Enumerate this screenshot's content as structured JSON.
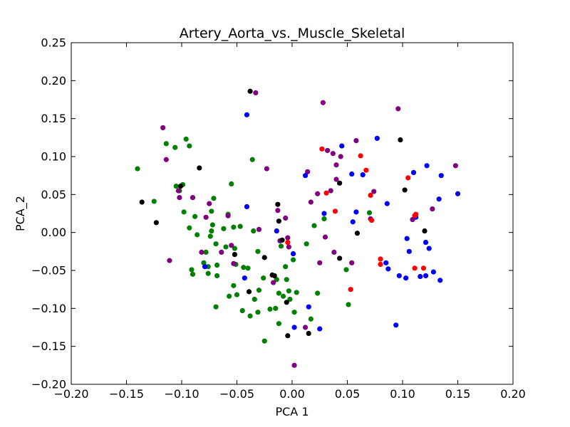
{
  "chart_data": {
    "type": "scatter",
    "title": "Artery_Aorta_vs._Muscle_Skeletal",
    "xlabel": "PCA 1",
    "ylabel": "PCA_2",
    "xlim": [
      -0.2,
      0.2
    ],
    "ylim": [
      -0.2,
      0.25
    ],
    "xticks": [
      -0.2,
      -0.15,
      -0.1,
      -0.05,
      0.0,
      0.05,
      0.1,
      0.15,
      0.2
    ],
    "xtick_labels": [
      "−0.20",
      "−0.15",
      "−0.10",
      "−0.05",
      "0.00",
      "0.05",
      "0.10",
      "0.15",
      "0.20"
    ],
    "yticks": [
      -0.2,
      -0.15,
      -0.1,
      -0.05,
      0.0,
      0.05,
      0.1,
      0.15,
      0.2,
      0.25
    ],
    "ytick_labels": [
      "−0.20",
      "−0.15",
      "−0.10",
      "−0.05",
      "0.00",
      "0.05",
      "0.10",
      "0.15",
      "0.20",
      "0.25"
    ],
    "grid": false,
    "legend": "none",
    "series": [
      {
        "name": "green",
        "color": "#008000",
        "points": [
          [
            -0.14,
            0.084
          ],
          [
            -0.125,
            0.041
          ],
          [
            -0.114,
            0.117
          ],
          [
            -0.096,
            0.123
          ],
          [
            -0.093,
            0.114
          ],
          [
            -0.106,
            0.112
          ],
          [
            -0.099,
            0.063
          ],
          [
            -0.105,
            0.061
          ],
          [
            -0.102,
            0.055
          ],
          [
            -0.098,
            0.027
          ],
          [
            -0.093,
            0.006
          ],
          [
            -0.088,
            0.021
          ],
          [
            -0.086,
            -0.003
          ],
          [
            -0.091,
            -0.049
          ],
          [
            -0.09,
            -0.055
          ],
          [
            -0.078,
            -0.026
          ],
          [
            -0.076,
            -0.045
          ],
          [
            -0.076,
            -0.054
          ],
          [
            -0.08,
            -0.04
          ],
          [
            -0.074,
            -0.005
          ],
          [
            -0.073,
            0.002
          ],
          [
            -0.072,
            0.01
          ],
          [
            -0.073,
            0.028
          ],
          [
            -0.071,
            0.045
          ],
          [
            -0.069,
            -0.015
          ],
          [
            -0.068,
            -0.043
          ],
          [
            -0.068,
            -0.057
          ],
          [
            -0.069,
            -0.098
          ],
          [
            -0.062,
            0.005
          ],
          [
            -0.06,
            -0.019
          ],
          [
            -0.058,
            0.024
          ],
          [
            -0.057,
            -0.084
          ],
          [
            -0.055,
            0.064
          ],
          [
            -0.053,
            0.007
          ],
          [
            -0.052,
            -0.021
          ],
          [
            -0.051,
            -0.042
          ],
          [
            -0.05,
            -0.082
          ],
          [
            -0.053,
            -0.07
          ],
          [
            -0.047,
            0.008
          ],
          [
            -0.045,
            -0.103
          ],
          [
            -0.044,
            -0.046
          ],
          [
            -0.04,
            -0.047
          ],
          [
            -0.038,
            -0.11
          ],
          [
            -0.036,
            0.096
          ],
          [
            -0.035,
            0.002
          ],
          [
            -0.034,
            -0.088
          ],
          [
            -0.031,
            -0.025
          ],
          [
            -0.031,
            -0.105
          ],
          [
            -0.03,
            -0.076
          ],
          [
            -0.026,
            -0.06
          ],
          [
            -0.025,
            -0.143
          ],
          [
            -0.02,
            -0.101
          ],
          [
            -0.015,
            -0.1
          ],
          [
            -0.014,
            -0.062
          ],
          [
            -0.012,
            -0.08
          ],
          [
            -0.012,
            -0.12
          ],
          [
            -0.01,
            -0.018
          ],
          [
            -0.008,
            -0.084
          ],
          [
            -0.006,
            -0.045
          ],
          [
            -0.005,
            -0.062
          ],
          [
            -0.002,
            -0.088
          ],
          [
            -0.003,
            -0.077
          ],
          [
            0.001,
            -0.036
          ],
          [
            0.002,
            -0.105
          ],
          [
            0.004,
            -0.079
          ],
          [
            0.013,
            -0.015
          ],
          [
            0.017,
            -0.114
          ],
          [
            0.02,
            0.009
          ],
          [
            0.023,
            -0.08
          ],
          [
            0.029,
            0.018
          ],
          [
            0.049,
            -0.049
          ],
          [
            0.051,
            -0.095
          ],
          [
            0.07,
            0.026
          ]
        ]
      },
      {
        "name": "purple",
        "color": "#800080",
        "points": [
          [
            -0.117,
            0.138
          ],
          [
            -0.114,
            0.096
          ],
          [
            -0.111,
            -0.037
          ],
          [
            -0.103,
            0.055
          ],
          [
            -0.102,
            0.046
          ],
          [
            -0.09,
            0.046
          ],
          [
            -0.082,
            -0.026
          ],
          [
            -0.078,
            0.02
          ],
          [
            -0.075,
            0.038
          ],
          [
            -0.064,
            -0.026
          ],
          [
            -0.058,
            0.022
          ],
          [
            -0.055,
            -0.017
          ],
          [
            -0.053,
            -0.041
          ],
          [
            -0.033,
            0.184
          ],
          [
            -0.03,
            0.004
          ],
          [
            -0.023,
            0.084
          ],
          [
            -0.017,
            -0.066
          ],
          [
            -0.013,
            0.029
          ],
          [
            -0.011,
            -0.011
          ],
          [
            -0.006,
            0.019
          ],
          [
            -0.004,
            -0.007
          ],
          [
            -0.003,
            -0.019
          ],
          [
            0.002,
            -0.175
          ],
          [
            0.012,
            -0.125
          ],
          [
            0.014,
            0.08
          ],
          [
            0.017,
            0.04
          ],
          [
            0.023,
            0.051
          ],
          [
            0.025,
            -0.04
          ],
          [
            0.028,
            0.171
          ],
          [
            0.03,
            -0.006
          ],
          [
            0.032,
            0.108
          ],
          [
            0.035,
            0.055
          ],
          [
            0.037,
            0.104
          ],
          [
            0.038,
            -0.026
          ],
          [
            0.04,
            0.089
          ],
          [
            0.04,
            0.07
          ],
          [
            0.044,
            0.1
          ],
          [
            0.054,
            -0.04
          ],
          [
            0.058,
            0.121
          ],
          [
            0.071,
            0.018
          ],
          [
            0.074,
            0.054
          ],
          [
            0.096,
            0.163
          ],
          [
            0.109,
            0.017
          ],
          [
            0.127,
            0.031
          ],
          [
            0.148,
            0.088
          ]
        ]
      },
      {
        "name": "black",
        "color": "#000000",
        "points": [
          [
            -0.136,
            0.04
          ],
          [
            -0.123,
            0.013
          ],
          [
            -0.101,
            0.061
          ],
          [
            -0.084,
            0.085
          ],
          [
            -0.052,
            -0.029
          ],
          [
            -0.039,
            -0.078
          ],
          [
            -0.038,
            0.186
          ],
          [
            -0.025,
            -0.033
          ],
          [
            -0.018,
            -0.056
          ],
          [
            -0.016,
            -0.057
          ],
          [
            -0.013,
            0.037
          ],
          [
            -0.012,
            0.015
          ],
          [
            -0.009,
            -0.01
          ],
          [
            -0.005,
            -0.092
          ],
          [
            -0.004,
            -0.136
          ],
          [
            0.015,
            -0.133
          ],
          [
            0.043,
            0.065
          ],
          [
            0.043,
            -0.034
          ],
          [
            0.059,
            -0.001
          ],
          [
            0.098,
            0.122
          ],
          [
            0.102,
            0.056
          ],
          [
            0.12,
            0.002
          ]
        ]
      },
      {
        "name": "blue",
        "color": "#0000ff",
        "points": [
          [
            -0.079,
            -0.045
          ],
          [
            -0.043,
            -0.06
          ],
          [
            -0.041,
            0.155
          ],
          [
            -0.041,
            0.034
          ],
          [
            -0.014,
            0.002
          ],
          [
            0.001,
            -0.028
          ],
          [
            0.002,
            -0.125
          ],
          [
            0.012,
            0.075
          ],
          [
            0.015,
            -0.098
          ],
          [
            0.025,
            -0.127
          ],
          [
            0.029,
            0.025
          ],
          [
            0.045,
            0.114
          ],
          [
            0.054,
            0.077
          ],
          [
            0.055,
            0.014
          ],
          [
            0.058,
            0.027
          ],
          [
            0.064,
            0.076
          ],
          [
            0.077,
            0.124
          ],
          [
            0.085,
            -0.04
          ],
          [
            0.087,
            -0.048
          ],
          [
            0.086,
            0.038
          ],
          [
            0.094,
            -0.122
          ],
          [
            0.097,
            -0.057
          ],
          [
            0.103,
            -0.06
          ],
          [
            0.104,
            -0.008
          ],
          [
            0.106,
            -0.025
          ],
          [
            0.11,
            0.079
          ],
          [
            0.112,
            0.02
          ],
          [
            0.116,
            -0.058
          ],
          [
            0.121,
            -0.057
          ],
          [
            0.121,
            -0.013
          ],
          [
            0.122,
            0.088
          ],
          [
            0.124,
            -0.021
          ],
          [
            0.128,
            -0.052
          ],
          [
            0.133,
            0.044
          ],
          [
            0.134,
            -0.063
          ],
          [
            0.135,
            0.075
          ],
          [
            0.15,
            0.051
          ]
        ]
      },
      {
        "name": "red",
        "color": "#ff0000",
        "points": [
          [
            -0.004,
            -0.013
          ],
          [
            0.027,
            0.11
          ],
          [
            0.031,
            0.052
          ],
          [
            0.039,
            0.028
          ],
          [
            0.053,
            -0.075
          ],
          [
            0.062,
            0.101
          ],
          [
            0.067,
            0.082
          ],
          [
            0.071,
            0.049
          ],
          [
            0.072,
            0.016
          ],
          [
            0.08,
            -0.035
          ],
          [
            0.08,
            -0.042
          ],
          [
            0.105,
            0.072
          ],
          [
            0.111,
            -0.047
          ],
          [
            0.111,
            0.022
          ],
          [
            0.112,
            0.024
          ],
          [
            0.119,
            -0.047
          ]
        ]
      }
    ]
  }
}
